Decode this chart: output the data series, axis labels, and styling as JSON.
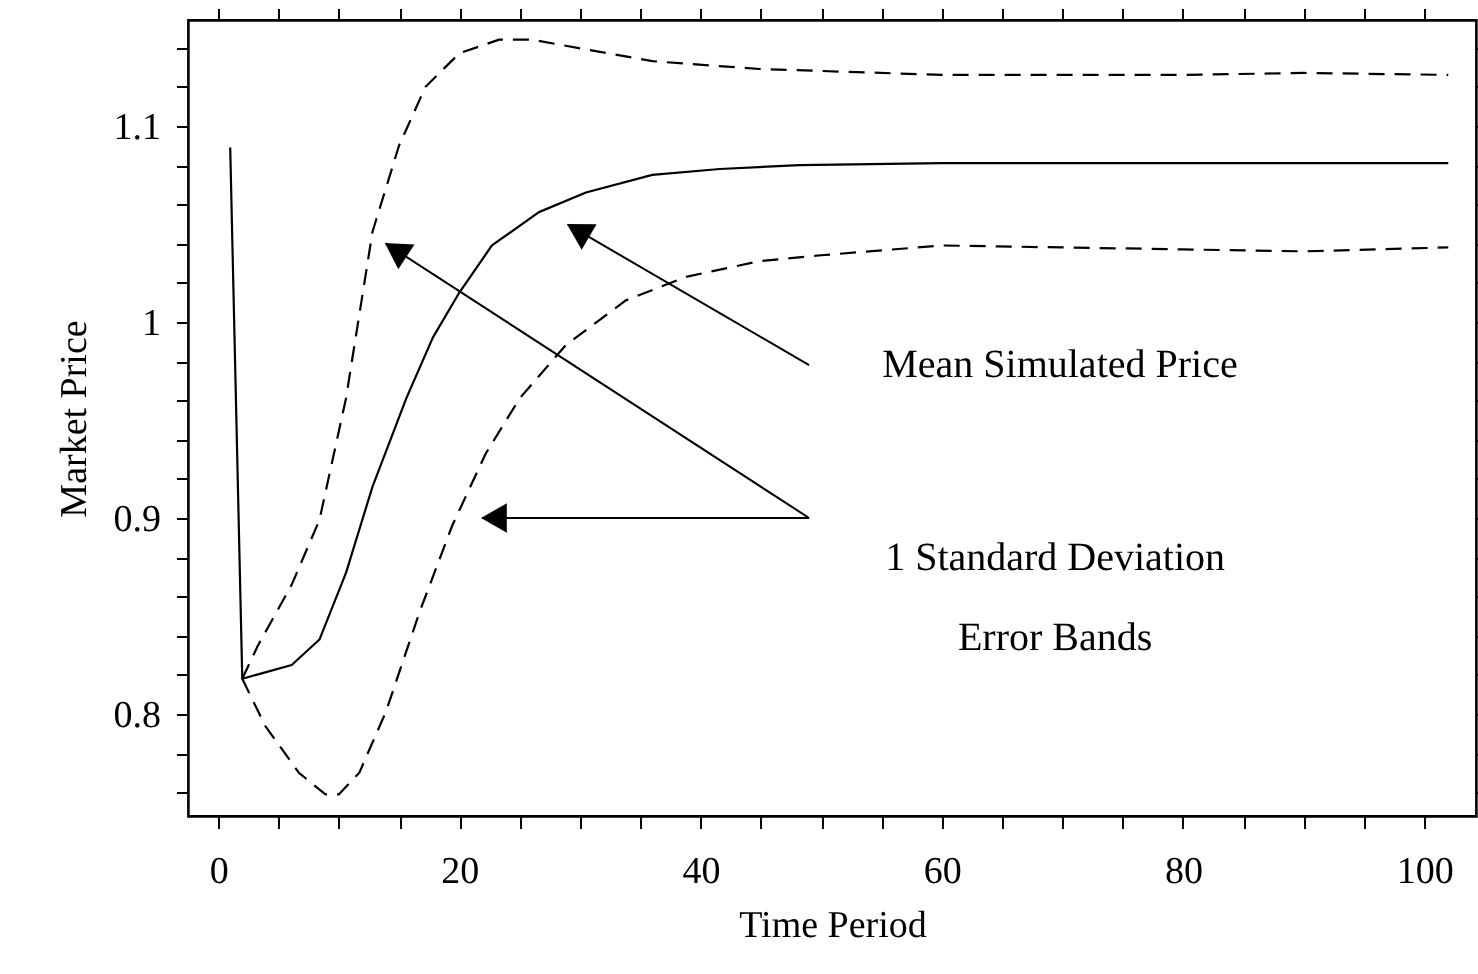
{
  "chart_data": {
    "type": "line",
    "xlabel": "Time Period",
    "ylabel": "Market Price",
    "xlim": [
      -2.5,
      104.3
    ],
    "ylim": [
      0.748,
      1.154
    ],
    "xticks": [
      0,
      {
        "value": 5,
        "label": null
      },
      {
        "value": 10,
        "label": null
      },
      {
        "value": 15,
        "label": null
      },
      20,
      {
        "value": 25,
        "label": null
      },
      {
        "value": 30,
        "label": null
      },
      {
        "value": 35,
        "label": null
      },
      40,
      {
        "value": 45,
        "label": null
      },
      {
        "value": 50,
        "label": null
      },
      {
        "value": 55,
        "label": null
      },
      60,
      {
        "value": 65,
        "label": null
      },
      {
        "value": 70,
        "label": null
      },
      {
        "value": 75,
        "label": null
      },
      80,
      {
        "value": 85,
        "label": null
      },
      {
        "value": 90,
        "label": null
      },
      {
        "value": 95,
        "label": null
      },
      100
    ],
    "yticks": [
      {
        "value": 0.76,
        "label": null
      },
      {
        "value": 0.78,
        "label": null
      },
      0.8,
      {
        "value": 0.82,
        "label": null
      },
      {
        "value": 0.84,
        "label": null
      },
      {
        "value": 0.86,
        "label": null
      },
      {
        "value": 0.88,
        "label": null
      },
      0.9,
      {
        "value": 0.92,
        "label": null
      },
      {
        "value": 0.94,
        "label": null
      },
      {
        "value": 0.96,
        "label": null
      },
      {
        "value": 0.98,
        "label": null
      },
      1,
      {
        "value": 1.02,
        "label": null
      },
      {
        "value": 1.04,
        "label": null
      },
      {
        "value": 1.06,
        "label": null
      },
      {
        "value": 1.08,
        "label": null
      },
      1.1,
      {
        "value": 1.12,
        "label": null
      },
      {
        "value": 1.14,
        "label": null
      }
    ],
    "grid": false,
    "marker": "none",
    "series": [
      {
        "color": "#000000",
        "line_style": "solid",
        "x": [
          1,
          2,
          6.1,
          8.4,
          10.6,
          12.8,
          15.6,
          17.8,
          20,
          22.7,
          26.6,
          30.5,
          36,
          41.6,
          48.2,
          60,
          80,
          102
        ],
        "values": [
          1.089,
          0.818,
          0.825,
          0.838,
          0.872,
          0.916,
          0.961,
          0.992,
          1.015,
          1.039,
          1.056,
          1.066,
          1.075,
          1.078,
          1.08,
          1.081,
          1.081,
          1.081
        ]
      },
      {
        "color": "#000000",
        "line_style": "dashed",
        "x": [
          2,
          3.3,
          6.1,
          8.4,
          10.6,
          12.8,
          15,
          17.2,
          20,
          23.3,
          26,
          30.5,
          36,
          44.9,
          50,
          60,
          70,
          80,
          90,
          102
        ],
        "values": [
          0.818,
          0.835,
          0.866,
          0.899,
          0.961,
          1.046,
          1.09,
          1.12,
          1.137,
          1.144,
          1.144,
          1.139,
          1.133,
          1.129,
          1.128,
          1.126,
          1.126,
          1.126,
          1.127,
          1.126
        ]
      },
      {
        "color": "#000000",
        "line_style": "dashed",
        "x": [
          2,
          3.9,
          6.7,
          8.9,
          10,
          11.7,
          13.9,
          16.7,
          19.4,
          22.2,
          25,
          28.8,
          33.8,
          38.8,
          44.9,
          50,
          60,
          70,
          80,
          90,
          102
        ],
        "values": [
          0.818,
          0.794,
          0.77,
          0.759,
          0.759,
          0.77,
          0.801,
          0.852,
          0.896,
          0.933,
          0.961,
          0.988,
          1.011,
          1.023,
          1.031,
          1.034,
          1.039,
          1.038,
          1.037,
          1.036,
          1.038
        ]
      }
    ],
    "annotations": [
      "Mean Simulated Price",
      "1 Standard Deviation\nError Bands"
    ]
  }
}
